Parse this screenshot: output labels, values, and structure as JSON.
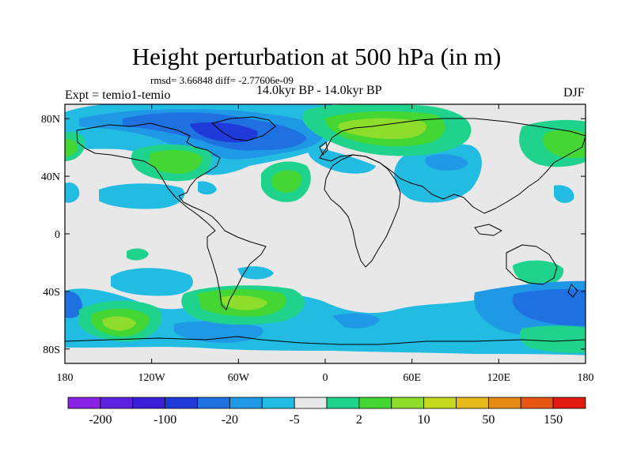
{
  "title": "Height perturbation at 500 hPa (in m)",
  "stats": "rmsd= 3.66848 diff= -2.77606e-09",
  "left_label": "Expt = temio1-temio",
  "center_label": "14.0kyr BP - 14.0kyr BP",
  "right_label": "DJF",
  "lat_labels": [
    "80N",
    "40N",
    "0",
    "40S",
    "80S"
  ],
  "lon_labels": [
    "180",
    "120W",
    "60W",
    "0",
    "60E",
    "120E",
    "180"
  ],
  "colorbar": {
    "colors": [
      "#8a22e6",
      "#5c22e0",
      "#3a1ed8",
      "#1f3ad8",
      "#1f70e0",
      "#1f98e6",
      "#22bce2",
      "#e8e8e8",
      "#20d38c",
      "#44d632",
      "#8edc2c",
      "#c4d81e",
      "#e6b81a",
      "#e68a16",
      "#e65512",
      "#e01a10"
    ],
    "labels": [
      "-200",
      "-100",
      "-20",
      "-5",
      "2",
      "10",
      "50",
      "150"
    ]
  },
  "colors": {
    "neutral": "#e8e8e8",
    "cyan": "#22bce2",
    "light_blue": "#1f98e6",
    "blue": "#1f70e0",
    "teal": "#20d38c",
    "green": "#44d632",
    "yellow_green": "#8edc2c"
  }
}
